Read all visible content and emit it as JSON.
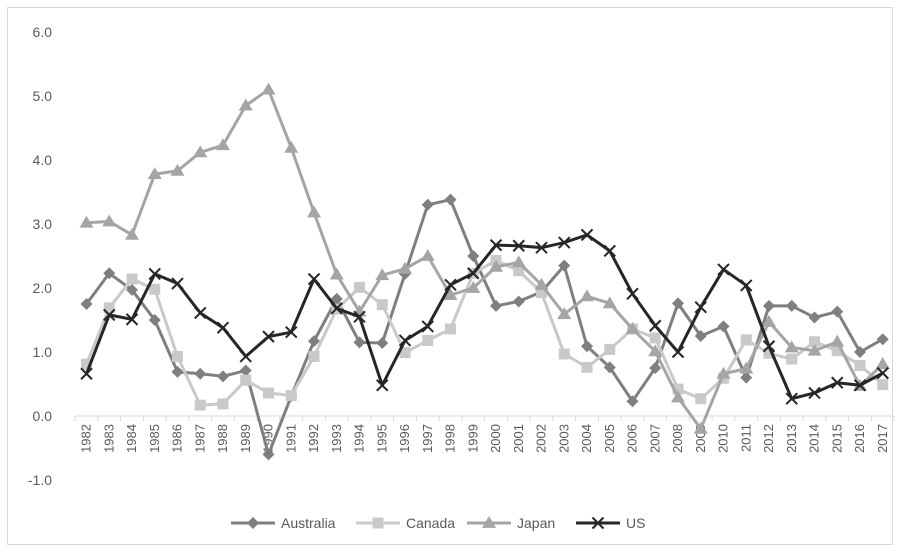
{
  "chart_data": {
    "type": "line",
    "title": "",
    "xlabel": "",
    "ylabel": "",
    "ylim": [
      -1.0,
      6.0
    ],
    "yticks": [
      "-1.0",
      "0.0",
      "1.0",
      "2.0",
      "3.0",
      "4.0",
      "5.0",
      "6.0"
    ],
    "grid": false,
    "legend_position": "bottom",
    "categories": [
      "1982",
      "1983",
      "1984",
      "1985",
      "1986",
      "1987",
      "1988",
      "1989",
      "1990",
      "1991",
      "1992",
      "1993",
      "1994",
      "1995",
      "1996",
      "1997",
      "1998",
      "1999",
      "2000",
      "2001",
      "2002",
      "2003",
      "2004",
      "2005",
      "2006",
      "2007",
      "2008",
      "2009",
      "2010",
      "2011",
      "2012",
      "2013",
      "2014",
      "2015",
      "2016",
      "2017"
    ],
    "series": [
      {
        "name": "Australia",
        "marker": "diamond",
        "color": "#7f7f7f",
        "values": [
          1.75,
          2.23,
          1.97,
          1.5,
          0.69,
          0.66,
          0.62,
          0.71,
          -0.6,
          0.31,
          1.17,
          1.83,
          1.15,
          1.14,
          2.22,
          3.3,
          3.38,
          2.5,
          1.72,
          1.79,
          1.94,
          2.35,
          1.09,
          0.76,
          0.23,
          0.75,
          1.76,
          1.25,
          1.4,
          0.6,
          1.72,
          1.72,
          1.54,
          1.63,
          1.0,
          1.2
        ]
      },
      {
        "name": "Canada",
        "marker": "square",
        "color": "#c9c9c9",
        "values": [
          0.81,
          1.69,
          2.14,
          1.98,
          0.93,
          0.17,
          0.19,
          0.56,
          0.36,
          0.32,
          0.93,
          1.67,
          2.01,
          1.74,
          0.99,
          1.18,
          1.36,
          2.23,
          2.43,
          2.27,
          1.93,
          0.97,
          0.76,
          1.04,
          1.36,
          1.22,
          0.42,
          0.27,
          0.59,
          1.19,
          0.98,
          0.89,
          1.16,
          1.02,
          0.79,
          0.49
        ]
      },
      {
        "name": "Japan",
        "marker": "triangle",
        "color": "#a5a5a5",
        "values": [
          3.02,
          3.04,
          2.83,
          3.78,
          3.83,
          4.12,
          4.23,
          4.85,
          5.1,
          4.19,
          3.18,
          2.21,
          1.63,
          2.2,
          2.3,
          2.5,
          1.89,
          2.0,
          2.33,
          2.4,
          2.05,
          1.59,
          1.87,
          1.76,
          1.36,
          1.01,
          0.29,
          -0.2,
          0.66,
          0.74,
          1.47,
          1.07,
          1.02,
          1.16,
          0.47,
          0.81
        ]
      },
      {
        "name": "US",
        "marker": "x",
        "color": "#262626",
        "values": [
          0.66,
          1.58,
          1.51,
          2.22,
          2.07,
          1.61,
          1.38,
          0.93,
          1.24,
          1.31,
          2.14,
          1.68,
          1.55,
          0.48,
          1.18,
          1.4,
          2.05,
          2.23,
          2.67,
          2.66,
          2.63,
          2.71,
          2.83,
          2.58,
          1.91,
          1.41,
          1.0,
          1.7,
          2.29,
          2.04,
          1.09,
          0.27,
          0.36,
          0.52,
          0.48,
          0.67
        ]
      }
    ]
  }
}
